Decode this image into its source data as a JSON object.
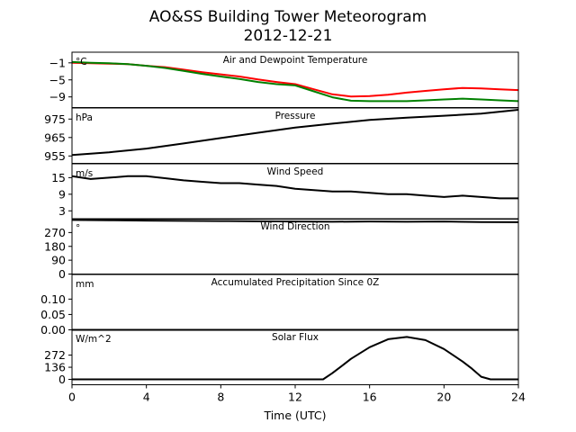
{
  "figure": {
    "title_line1": "AO&SS Building Tower Meteorogram",
    "title_line2": "2012-12-21",
    "xlabel": "Time (UTC)"
  },
  "chart_data": {
    "type": "line",
    "x_axis": {
      "label": "Time (UTC)",
      "range": [
        0,
        24
      ],
      "ticks": [
        0,
        4,
        8,
        12,
        16,
        20,
        24
      ]
    },
    "panels": [
      {
        "id": "temperature",
        "title": "Air and Dewpoint Temperature",
        "unit": "°C",
        "ylim": [
          -11.5,
          1.5
        ],
        "yticks": [
          -1,
          -5,
          -9
        ],
        "ytick_labels": [
          "−1",
          "−5",
          "−9"
        ],
        "series": [
          {
            "color": "#ff0000",
            "x": [
              0,
              1,
              2,
              3,
              4,
              5,
              6,
              7,
              8,
              9,
              10,
              11,
              12,
              13,
              14,
              15,
              16,
              17,
              18,
              19,
              20,
              21,
              22,
              23,
              24
            ],
            "y": [
              -1.0,
              -1.1,
              -1.2,
              -1.3,
              -1.7,
              -2.0,
              -2.6,
              -3.2,
              -3.7,
              -4.2,
              -4.9,
              -5.5,
              -6.0,
              -7.2,
              -8.4,
              -8.9,
              -8.8,
              -8.5,
              -8.0,
              -7.6,
              -7.2,
              -6.9,
              -7.0,
              -7.2,
              -7.4
            ]
          },
          {
            "color": "#008000",
            "x": [
              0,
              1,
              2,
              3,
              4,
              5,
              6,
              7,
              8,
              9,
              10,
              11,
              12,
              13,
              14,
              15,
              16,
              17,
              18,
              19,
              20,
              21,
              22,
              23,
              24
            ],
            "y": [
              -0.8,
              -1.0,
              -1.1,
              -1.3,
              -1.7,
              -2.2,
              -2.9,
              -3.6,
              -4.2,
              -4.8,
              -5.5,
              -6.0,
              -6.3,
              -7.7,
              -9.1,
              -9.9,
              -10.0,
              -10.0,
              -10.0,
              -9.8,
              -9.6,
              -9.4,
              -9.6,
              -9.8,
              -10.0
            ]
          }
        ]
      },
      {
        "id": "pressure",
        "title": "Pressure",
        "unit": "hPa",
        "ylim": [
          951,
          981
        ],
        "yticks": [
          955,
          965,
          975
        ],
        "ytick_labels": [
          "955",
          "965",
          "975"
        ],
        "series": [
          {
            "color": "#000000",
            "x": [
              0,
              2,
              4,
              6,
              8,
              10,
              12,
              14,
              16,
              18,
              20,
              22,
              24
            ],
            "y": [
              955.5,
              957.0,
              959.0,
              961.8,
              964.7,
              967.6,
              970.4,
              972.5,
              974.5,
              975.8,
              976.8,
              978.0,
              980.0
            ]
          }
        ]
      },
      {
        "id": "wind_speed",
        "title": "Wind Speed",
        "unit": "m/s",
        "ylim": [
          0,
          20
        ],
        "yticks": [
          3,
          9,
          15
        ],
        "ytick_labels": [
          "3",
          "9",
          "15"
        ],
        "series": [
          {
            "color": "#000000",
            "x": [
              0,
              1,
              2,
              3,
              4,
              5,
              6,
              7,
              8,
              9,
              10,
              11,
              12,
              13,
              14,
              15,
              16,
              17,
              18,
              19,
              20,
              21,
              22,
              23,
              24
            ],
            "y": [
              15.5,
              14.5,
              15.0,
              15.5,
              15.5,
              14.8,
              14.0,
              13.5,
              13.0,
              13.0,
              12.5,
              12.0,
              11.0,
              10.5,
              10.0,
              10.0,
              9.5,
              9.0,
              9.0,
              8.5,
              8.0,
              8.5,
              8.0,
              7.5,
              7.5
            ]
          }
        ]
      },
      {
        "id": "wind_direction",
        "title": "Wind Direction",
        "unit": "°",
        "ylim": [
          0,
          360
        ],
        "yticks": [
          0,
          90,
          180,
          270
        ],
        "ytick_labels": [
          "0",
          "90",
          "180",
          "270"
        ],
        "series": [
          {
            "color": "#000000",
            "x": [
              0,
              2,
              4,
              6,
              8,
              10,
              12,
              14,
              16,
              18,
              20,
              22,
              24
            ],
            "y": [
              352,
              350,
              348,
              346,
              345,
              343,
              342,
              340,
              342,
              340,
              342,
              338,
              337
            ]
          }
        ]
      },
      {
        "id": "precipitation",
        "title": "Accumulated Precipitation Since 0Z",
        "unit": "mm",
        "ylim": [
          0,
          0.18
        ],
        "yticks": [
          0.0,
          0.05,
          0.1
        ],
        "ytick_labels": [
          "0.00",
          "0.05",
          "0.10"
        ],
        "series": [
          {
            "color": "#000000",
            "x": [
              0,
              24
            ],
            "y": [
              0,
              0
            ]
          }
        ]
      },
      {
        "id": "solar_flux",
        "title": "Solar Flux",
        "unit": "W/m^2",
        "ylim": [
          -60,
          560
        ],
        "yticks": [
          0,
          136,
          272
        ],
        "ytick_labels": [
          "0",
          "136",
          "272"
        ],
        "series": [
          {
            "color": "#000000",
            "x": [
              0,
              13.5,
              14,
              14.5,
              15,
              16,
              17,
              18,
              19,
              20,
              21,
              21.5,
              22,
              22.5,
              24
            ],
            "y": [
              0,
              0,
              70,
              150,
              230,
              360,
              450,
              475,
              440,
              340,
              200,
              120,
              30,
              0,
              0
            ]
          }
        ]
      }
    ]
  }
}
